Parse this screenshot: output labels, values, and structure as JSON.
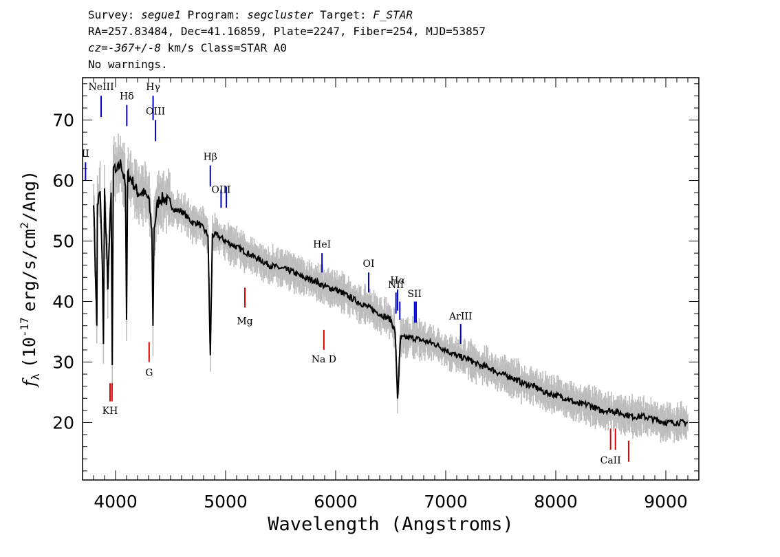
{
  "header": {
    "line1": {
      "survey_label": "Survey: ",
      "survey": "segue1",
      "program_label": " Program: ",
      "program": "segcluster",
      "target_label": " Target: ",
      "target": "F_STAR"
    },
    "line2": "RA=257.83484, Dec=41.16859, Plate=2247, Fiber=254, MJD=53857",
    "line3": {
      "cz": "cz=-367+/-8",
      "rest": " km/s Class=STAR A0"
    },
    "line4": "No warnings."
  },
  "chart_data": {
    "type": "line",
    "xlabel": "Wavelength (Angstroms)",
    "ylabel_prefix": "f",
    "ylabel_sub": "λ",
    "ylabel_main": "(10",
    "ylabel_exp": "-17",
    "ylabel_rest": "erg/s/cm",
    "ylabel_exp2": "2",
    "ylabel_end": "/Ang)",
    "xlim": [
      3700,
      9300
    ],
    "ylim": [
      10.5,
      77
    ],
    "x_ticks": [
      4000,
      5000,
      6000,
      7000,
      8000,
      9000
    ],
    "x_tick_labels": [
      "4000",
      "5000",
      "6000",
      "7000",
      "8000",
      "9000"
    ],
    "y_ticks": [
      20,
      30,
      40,
      50,
      60,
      70
    ],
    "y_tick_labels": [
      "20",
      "30",
      "40",
      "50",
      "60",
      "70"
    ],
    "grid": false,
    "series": [
      {
        "name": "",
        "color": "#000000",
        "x": [
          3800,
          3830,
          3835,
          3860,
          3880,
          3890,
          3900,
          3930,
          3960,
          3970,
          3980,
          4000,
          4050,
          4090,
          4100,
          4110,
          4150,
          4200,
          4250,
          4300,
          4330,
          4340,
          4350,
          4380,
          4400,
          4450,
          4500,
          4550,
          4600,
          4650,
          4700,
          4750,
          4800,
          4840,
          4861,
          4880,
          4920,
          5000,
          5100,
          5200,
          5300,
          5400,
          5500,
          5600,
          5700,
          5800,
          5900,
          6000,
          6100,
          6200,
          6300,
          6400,
          6500,
          6540,
          6563,
          6590,
          6650,
          6700,
          6800,
          6900,
          7000,
          7100,
          7200,
          7300,
          7400,
          7500,
          7600,
          7700,
          7800,
          7900,
          8000,
          8100,
          8200,
          8300,
          8400,
          8500,
          8600,
          8700,
          8800,
          8900,
          9000,
          9100,
          9200
        ],
        "y": [
          57,
          36,
          56,
          58,
          46,
          33,
          58,
          43,
          58,
          29.5,
          63,
          61,
          63,
          59,
          37,
          61,
          60,
          58,
          58,
          57,
          52,
          36,
          52,
          56,
          57,
          57,
          56,
          55,
          55,
          54,
          53,
          53,
          52,
          51,
          31,
          51,
          51,
          50,
          49,
          48,
          47,
          46,
          45.5,
          45,
          44,
          43.5,
          42.5,
          42,
          41,
          40,
          39,
          38,
          37,
          35,
          24,
          34,
          34,
          34,
          33.5,
          33,
          32,
          31,
          30.5,
          29.5,
          29,
          28,
          27.5,
          26.5,
          26,
          25,
          24.5,
          24,
          23,
          23,
          22,
          22,
          21.5,
          21,
          21,
          20.5,
          20,
          20,
          20
        ]
      }
    ],
    "lines": [
      {
        "label": "NeIII",
        "wave": 3869,
        "color": "#0000cc",
        "y_top": 74,
        "y_bot": 70.5,
        "label_y": 75.5
      },
      {
        "label": "Hδ",
        "wave": 4102,
        "color": "#0000cc",
        "y_top": 72.5,
        "y_bot": 69,
        "label_y": 74
      },
      {
        "label": "Hγ",
        "wave": 4341,
        "color": "#0000cc",
        "y_top": 74,
        "y_bot": 70,
        "label_y": 75.5
      },
      {
        "label": "OIII",
        "wave": 4363,
        "color": "#0000cc",
        "y_top": 70,
        "y_bot": 66.5,
        "label_y": 71.5
      },
      {
        "label": "II",
        "wave": 3727,
        "color": "#0000cc",
        "y_top": 63,
        "y_bot": 60,
        "label_y": 64.5
      },
      {
        "label": "Hβ",
        "wave": 4861,
        "color": "#0000cc",
        "y_top": 62.5,
        "y_bot": 59,
        "label_y": 64
      },
      {
        "label": "OIII",
        "wave": 4959,
        "color": "#0000cc",
        "y_top": 58.5,
        "y_bot": 55.5,
        "label_y": 58.5
      },
      {
        "label": "",
        "wave": 5007,
        "color": "#0000cc",
        "y_top": 59,
        "y_bot": 55.5,
        "label_y": 0
      },
      {
        "label": "HeI",
        "wave": 5876,
        "color": "#0000cc",
        "y_top": 48,
        "y_bot": 44.8,
        "label_y": 49.5
      },
      {
        "label": "OI",
        "wave": 6300,
        "color": "#0000cc",
        "y_top": 44.8,
        "y_bot": 41.5,
        "label_y": 46.3
      },
      {
        "label": "NII",
        "wave": 6548,
        "color": "#0000cc",
        "y_top": 41.5,
        "y_bot": 38,
        "label_y": 42.8
      },
      {
        "label": "Hα",
        "wave": 6563,
        "color": "#0000cc",
        "y_top": 42,
        "y_bot": 38.5,
        "label_y": 43.5
      },
      {
        "label": "",
        "wave": 6583,
        "color": "#0000cc",
        "y_top": 40,
        "y_bot": 37,
        "label_y": 0
      },
      {
        "label": "SII",
        "wave": 6717,
        "color": "#0000cc",
        "y_top": 40,
        "y_bot": 36.5,
        "label_y": 41.3
      },
      {
        "label": "",
        "wave": 6731,
        "color": "#0000cc",
        "y_top": 40,
        "y_bot": 36.5,
        "label_y": 0
      },
      {
        "label": "ArIII",
        "wave": 7136,
        "color": "#0000cc",
        "y_top": 36.3,
        "y_bot": 33,
        "label_y": 37.6
      },
      {
        "label": "Mg",
        "wave": 5175,
        "color": "#dd0000",
        "y_top": 42.3,
        "y_bot": 39,
        "label_y": 36.8
      },
      {
        "label": "Na D",
        "wave": 5893,
        "color": "#dd0000",
        "y_top": 35.3,
        "y_bot": 32,
        "label_y": 30.5
      },
      {
        "label": "G",
        "wave": 4305,
        "color": "#dd0000",
        "y_top": 33.3,
        "y_bot": 30,
        "label_y": 28.3
      },
      {
        "label": "KH",
        "wave": 3950,
        "color": "#dd0000",
        "y_top": 26.5,
        "y_bot": 23.5,
        "label_y": 22
      },
      {
        "label": "",
        "wave": 3968,
        "color": "#dd0000",
        "y_top": 26.5,
        "y_bot": 23.5,
        "label_y": 0
      },
      {
        "label": "CaII",
        "wave": 8498,
        "color": "#dd0000",
        "y_top": 19,
        "y_bot": 15.5,
        "label_y": 13.8
      },
      {
        "label": "",
        "wave": 8542,
        "color": "#dd0000",
        "y_top": 19,
        "y_bot": 15.5,
        "label_y": 0
      },
      {
        "label": "",
        "wave": 8662,
        "color": "#dd0000",
        "y_top": 17,
        "y_bot": 13.5,
        "label_y": 0
      }
    ]
  }
}
